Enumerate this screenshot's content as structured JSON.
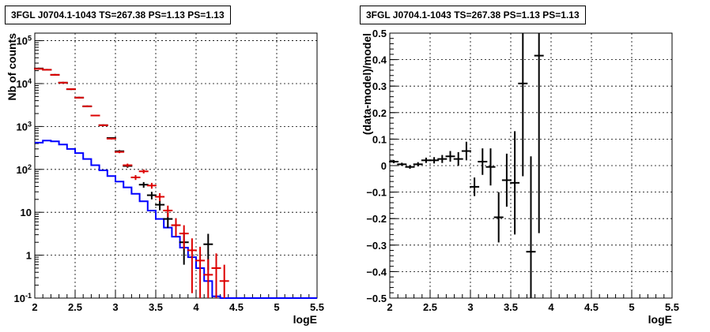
{
  "chart_data": [
    {
      "type": "line",
      "title": "3FGL J0704.1-1043 TS=267.38 PS=1.13 PS=1.13",
      "xlabel": "logE",
      "ylabel": "Nb of counts",
      "xlim": [
        2,
        5.5
      ],
      "ylim": [
        0.1,
        150000
      ],
      "yscale": "log",
      "grid": true,
      "x_ticks": [
        "2",
        "2.5",
        "3",
        "3.5",
        "4",
        "4.5",
        "5",
        "5.5"
      ],
      "y_ticks": [
        "10^{-1}",
        "1",
        "10",
        "10^{2}",
        "10^{3}",
        "10^{4}",
        "10^{5}"
      ],
      "bin_edges": [
        2.0,
        2.1,
        2.2,
        2.3,
        2.4,
        2.5,
        2.6,
        2.7,
        2.8,
        2.9,
        3.0,
        3.1,
        3.2,
        3.3,
        3.4,
        3.5,
        3.6,
        3.7,
        3.8,
        3.9,
        4.0,
        4.1,
        4.2,
        4.3,
        4.4,
        4.5,
        4.6,
        4.7,
        4.8,
        4.9,
        5.0,
        5.1,
        5.2,
        5.3,
        5.4,
        5.5
      ],
      "series": [
        {
          "color": "#0000ff",
          "style": "histogram",
          "values": [
            420,
            470,
            450,
            380,
            300,
            240,
            175,
            125,
            95,
            70,
            52,
            38,
            27,
            18,
            11,
            7,
            4.4,
            2.7,
            1.5,
            0.9,
            0.5,
            0.25,
            0.11,
            0.1,
            0.1,
            0.1,
            0.1,
            0.1,
            0.1,
            0.1,
            0.1,
            0.1,
            0.1,
            0.1,
            0.1
          ]
        },
        {
          "color": "#000000",
          "style": "errorbar",
          "x": [
            2.05,
            2.15,
            2.25,
            2.35,
            2.45,
            2.55,
            2.65,
            2.75,
            2.85,
            2.95,
            3.05,
            3.15,
            3.25,
            3.35,
            3.45,
            3.55,
            3.65,
            3.75,
            3.85,
            4.15
          ],
          "y": [
            22500,
            21000,
            16000,
            10500,
            7400,
            4700,
            2950,
            1800,
            1070,
            540,
            265,
            120,
            65,
            44,
            25,
            15,
            7,
            5,
            2,
            1.8
          ],
          "yerr_rel": [
            0.01,
            0.01,
            0.01,
            0.01,
            0.012,
            0.015,
            0.02,
            0.024,
            0.031,
            0.043,
            0.061,
            0.091,
            0.124,
            0.15,
            0.2,
            0.26,
            0.38,
            0.45,
            0.7,
            0.75
          ]
        },
        {
          "color": "#dd0000",
          "style": "errorbar",
          "x": [
            2.05,
            2.15,
            2.25,
            2.35,
            2.45,
            2.55,
            2.65,
            2.75,
            2.85,
            2.95,
            3.05,
            3.15,
            3.25,
            3.35,
            3.45,
            3.55,
            3.65,
            3.75,
            3.85,
            3.95,
            4.05,
            4.15,
            4.25,
            4.35
          ],
          "y": [
            22000,
            21000,
            16000,
            10500,
            7400,
            4700,
            2950,
            1800,
            1070,
            520,
            255,
            125,
            65,
            90,
            42,
            23,
            11,
            5,
            3.2,
            1.3,
            0.75,
            0.35,
            0.5,
            0.25
          ],
          "yerr_rel": [
            0.01,
            0.01,
            0.01,
            0.01,
            0.012,
            0.015,
            0.02,
            0.024,
            0.031,
            0.044,
            0.063,
            0.089,
            0.124,
            0.106,
            0.154,
            0.21,
            0.3,
            0.45,
            0.56,
            0.9,
            1.1,
            1.3,
            1.2,
            1.4
          ]
        }
      ]
    },
    {
      "type": "scatter",
      "title": "3FGL J0704.1-1043 TS=267.38 PS=1.13 PS=1.13",
      "xlabel": "logE",
      "ylabel": "(data-model)/model",
      "xlim": [
        2,
        5.5
      ],
      "ylim": [
        -0.5,
        0.5
      ],
      "grid": true,
      "x_ticks": [
        "2",
        "2.5",
        "3",
        "3.5",
        "4",
        "4.5",
        "5",
        "5.5"
      ],
      "y_ticks": [
        "−0.5",
        "−0.4",
        "−0.3",
        "−0.2",
        "−0.1",
        "0",
        "0.1",
        "0.2",
        "0.3",
        "0.4",
        "0.5"
      ],
      "series": [
        {
          "color": "#000000",
          "style": "errorbar",
          "x": [
            2.05,
            2.15,
            2.25,
            2.35,
            2.45,
            2.55,
            2.65,
            2.75,
            2.85,
            2.95,
            3.05,
            3.15,
            3.25,
            3.35,
            3.45,
            3.55,
            3.65,
            3.75,
            3.85
          ],
          "y": [
            0.015,
            0.005,
            -0.005,
            0.005,
            0.02,
            0.02,
            0.025,
            0.035,
            0.025,
            0.055,
            -0.08,
            0.015,
            -0.005,
            -0.195,
            -0.055,
            -0.065,
            0.31,
            -0.325,
            0.415
          ],
          "yerr": [
            0.006,
            0.006,
            0.007,
            0.008,
            0.01,
            0.012,
            0.015,
            0.02,
            0.026,
            0.035,
            0.035,
            0.05,
            0.07,
            0.095,
            0.1,
            0.195,
            0.35,
            0.36,
            0.67
          ]
        }
      ]
    }
  ]
}
